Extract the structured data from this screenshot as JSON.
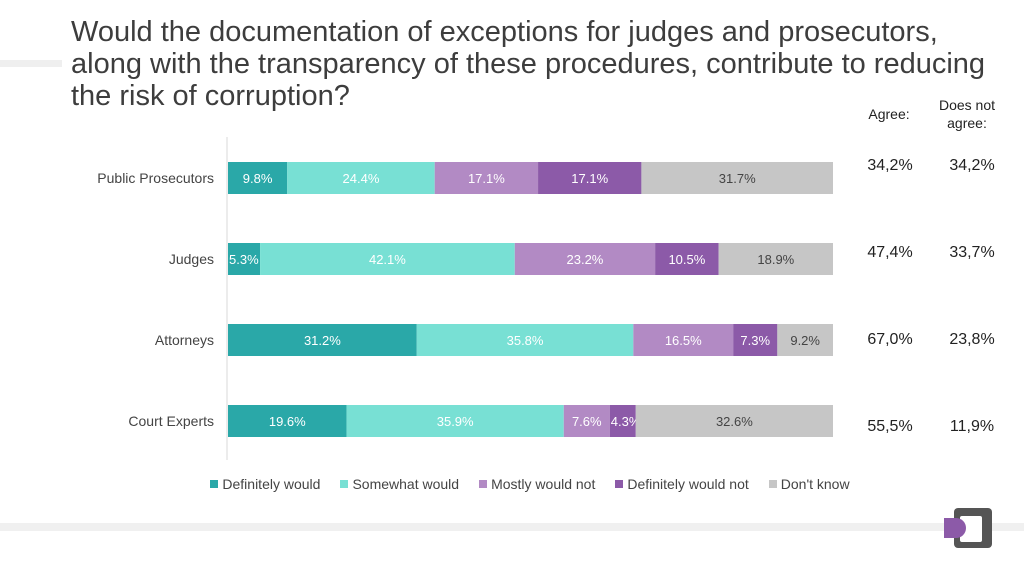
{
  "title": "Would the documentation of exceptions for judges and prosecutors, along with the transparency of these procedures, contribute to reducing the risk of corruption?",
  "headers": {
    "agree": "Agree:",
    "does_not_agree": "Does not agree:"
  },
  "side_values": [
    {
      "agree": "34,2%",
      "not_agree": "34,2%"
    },
    {
      "agree": "47,4%",
      "not_agree": "33,7%"
    },
    {
      "agree": "67,0%",
      "not_agree": "23,8%"
    },
    {
      "agree": "55,5%",
      "not_agree": "11,9%"
    }
  ],
  "chart_data": {
    "type": "bar",
    "orientation": "horizontal",
    "stacked": true,
    "normalized": true,
    "categories": [
      "Public Prosecutors",
      "Judges",
      "Attorneys",
      "Court Experts"
    ],
    "series": [
      {
        "name": "Definitely would",
        "color": "#2aa8a8",
        "values": [
          9.8,
          5.3,
          31.2,
          19.6
        ],
        "labels": [
          "9.8%",
          "5.3%",
          "31.2%",
          "19.6%"
        ]
      },
      {
        "name": "Somewhat would",
        "color": "#78e0d4",
        "values": [
          24.4,
          42.1,
          35.8,
          35.9
        ],
        "labels": [
          "24.4%",
          "42.1%",
          "35.8%",
          "35.9%"
        ]
      },
      {
        "name": "Mostly would not",
        "color": "#b28ac4",
        "values": [
          17.1,
          23.2,
          16.5,
          7.6
        ],
        "labels": [
          "17.1%",
          "23.2%",
          "16.5%",
          "7.6%"
        ]
      },
      {
        "name": "Definitely would not",
        "color": "#8c5aa8",
        "values": [
          17.1,
          10.5,
          7.3,
          4.3
        ],
        "labels": [
          "17.1%",
          "10.5%",
          "7.3%",
          "4.3%"
        ]
      },
      {
        "name": "Don't know",
        "color": "#c6c6c6",
        "values": [
          31.7,
          18.9,
          9.2,
          32.6
        ],
        "labels": [
          "31.7%",
          "18.9%",
          "9.2%",
          "32.6%"
        ]
      }
    ],
    "legend_position": "bottom",
    "grid": false
  }
}
